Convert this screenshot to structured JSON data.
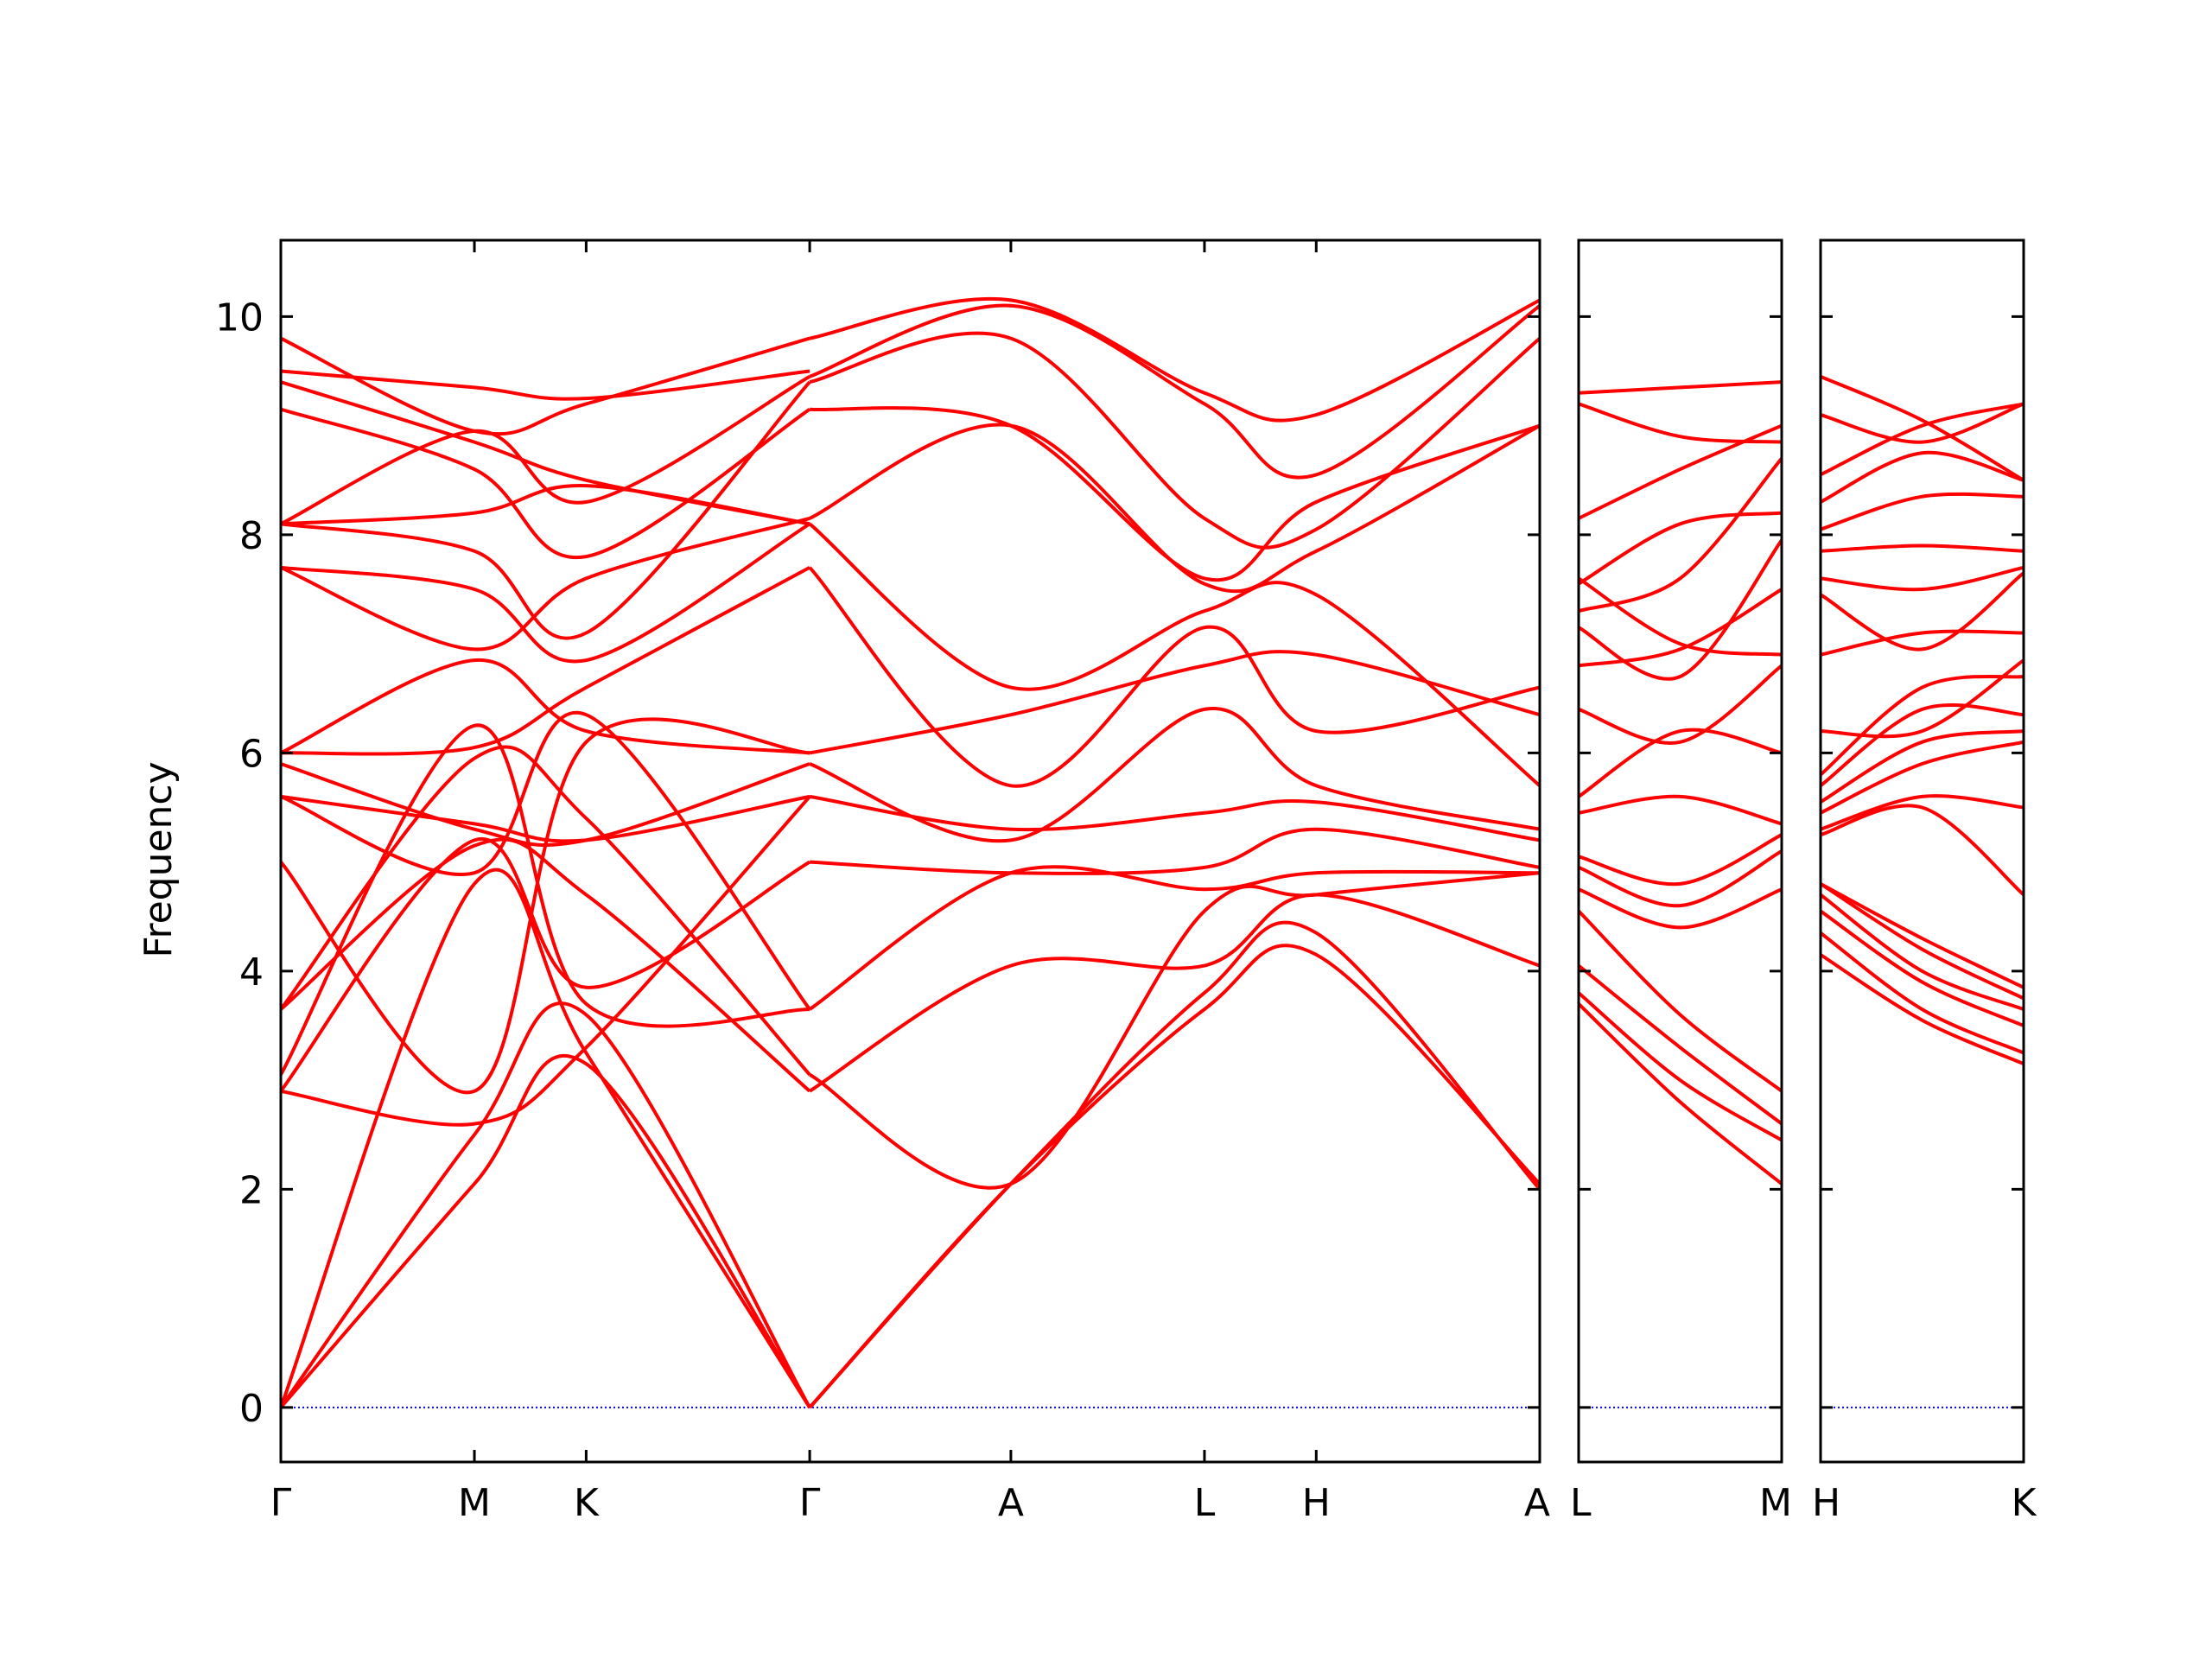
{
  "chart_data": {
    "type": "line",
    "title": "",
    "ylabel": "Frequency",
    "ylim": [
      -0.5,
      10.7
    ],
    "yticks": [
      0,
      2,
      4,
      6,
      8,
      10
    ],
    "colors": {
      "bands": "#ff0000",
      "zero_line": "#0000ff",
      "axes": "#000000"
    },
    "panels": [
      {
        "name": "Γ-M-K-Γ-A-L-H-A",
        "x_labels": [
          "Γ",
          "M",
          "K",
          "Γ",
          "A",
          "L",
          "H",
          "A"
        ],
        "x_positions": [
          0,
          0.866,
          1.366,
          2.366,
          3.266,
          4.132,
          4.632,
          5.632
        ],
        "series": [
          {
            "x": [
              0,
              0.866,
              1.366,
              2.366
            ],
            "y": [
              0,
              2.05,
              3.15,
              0
            ]
          },
          {
            "x": [
              0,
              0.866,
              1.366,
              2.366
            ],
            "y": [
              0,
              2.5,
              3.6,
              0
            ]
          },
          {
            "x": [
              0,
              0.866,
              1.366,
              2.366
            ],
            "y": [
              0,
              4.8,
              3.25,
              0
            ]
          },
          {
            "x": [
              0,
              0.866,
              1.366,
              2.366
            ],
            "y": [
              2.9,
              2.6,
              3.3,
              5.6
            ]
          },
          {
            "x": [
              0,
              0.866,
              1.366,
              2.366
            ],
            "y": [
              2.9,
              5.2,
              3.85,
              5.0
            ]
          },
          {
            "x": [
              0,
              0.866,
              1.366,
              2.366
            ],
            "y": [
              3.05,
              6.25,
              3.7,
              3.65
            ]
          },
          {
            "x": [
              0,
              0.866,
              1.366,
              2.366
            ],
            "y": [
              3.65,
              5.15,
              4.7,
              2.9
            ]
          },
          {
            "x": [
              0,
              0.866,
              1.366,
              2.366
            ],
            "y": [
              3.65,
              5.95,
              5.4,
              3.05
            ]
          },
          {
            "x": [
              0,
              0.866,
              1.366,
              2.366
            ],
            "y": [
              5.0,
              2.9,
              6.1,
              6.0
            ]
          },
          {
            "x": [
              0,
              0.866,
              1.366,
              2.366
            ],
            "y": [
              5.6,
              5.35,
              5.2,
              5.6
            ]
          },
          {
            "x": [
              0,
              0.866,
              1.366,
              2.366
            ],
            "y": [
              5.6,
              4.9,
              6.35,
              3.65
            ]
          },
          {
            "x": [
              0,
              0.866,
              1.366,
              2.366
            ],
            "y": [
              5.9,
              5.3,
              5.2,
              5.9
            ]
          },
          {
            "x": [
              0,
              0.866,
              1.366,
              2.366
            ],
            "y": [
              6.0,
              6.85,
              6.2,
              6.0
            ]
          },
          {
            "x": [
              0,
              0.866,
              1.366,
              2.366
            ],
            "y": [
              6.0,
              6.05,
              6.6,
              7.7
            ]
          },
          {
            "x": [
              0,
              0.866,
              1.366,
              2.366
            ],
            "y": [
              7.7,
              7.5,
              6.85,
              8.1
            ]
          },
          {
            "x": [
              0,
              0.866,
              1.366,
              2.366
            ],
            "y": [
              7.7,
              6.95,
              7.6,
              8.15
            ]
          },
          {
            "x": [
              0,
              0.866,
              1.366,
              2.366
            ],
            "y": [
              8.1,
              7.85,
              7.1,
              9.4
            ]
          },
          {
            "x": [
              0,
              0.866,
              1.366,
              2.366
            ],
            "y": [
              8.1,
              8.2,
              8.45,
              8.1
            ]
          },
          {
            "x": [
              0,
              0.866,
              1.366,
              2.366
            ],
            "y": [
              8.1,
              8.95,
              8.3,
              9.45
            ]
          },
          {
            "x": [
              0,
              0.866,
              1.366,
              2.366
            ],
            "y": [
              9.15,
              8.6,
              7.8,
              9.15
            ]
          },
          {
            "x": [
              0,
              0.866,
              1.366,
              2.366
            ],
            "y": [
              9.4,
              8.85,
              8.5,
              8.1
            ]
          },
          {
            "x": [
              0,
              0.866,
              1.366,
              2.366
            ],
            "y": [
              9.5,
              9.35,
              9.25,
              9.5
            ]
          },
          {
            "x": [
              0,
              0.866,
              1.366,
              2.366
            ],
            "y": [
              9.8,
              8.95,
              9.2,
              9.8
            ]
          },
          {
            "x": [
              2.366,
              3.266,
              4.132,
              4.632,
              5.632
            ],
            "y": [
              0,
              2.05,
              3.65,
              4.15,
              2.05
            ]
          },
          {
            "x": [
              2.366,
              3.266,
              4.132,
              4.632,
              5.632
            ],
            "y": [
              0,
              2.05,
              3.8,
              4.35,
              2.0
            ]
          },
          {
            "x": [
              2.366,
              3.266,
              4.132,
              4.632,
              5.632
            ],
            "y": [
              2.9,
              4.05,
              4.05,
              4.7,
              4.05
            ]
          },
          {
            "x": [
              2.366,
              3.266,
              4.132,
              4.632,
              5.632
            ],
            "y": [
              3.05,
              2.05,
              4.55,
              4.7,
              4.9
            ]
          },
          {
            "x": [
              2.366,
              3.266,
              4.132,
              4.632,
              5.632
            ],
            "y": [
              3.65,
              4.9,
              4.75,
              4.9,
              4.9
            ]
          },
          {
            "x": [
              2.366,
              3.266,
              4.132,
              4.632,
              5.632
            ],
            "y": [
              5.0,
              4.9,
              4.95,
              5.3,
              4.95
            ]
          },
          {
            "x": [
              2.366,
              3.266,
              4.132,
              4.632,
              5.632
            ],
            "y": [
              5.6,
              5.3,
              5.45,
              5.55,
              5.2
            ]
          },
          {
            "x": [
              2.366,
              3.266,
              4.132,
              4.632,
              5.632
            ],
            "y": [
              5.9,
              5.2,
              6.4,
              5.7,
              5.3
            ]
          },
          {
            "x": [
              2.366,
              3.266,
              4.132,
              4.632,
              5.632
            ],
            "y": [
              6.0,
              6.35,
              6.8,
              6.9,
              6.35
            ]
          },
          {
            "x": [
              2.366,
              3.266,
              4.132,
              4.632,
              5.632
            ],
            "y": [
              7.7,
              5.7,
              7.15,
              6.2,
              6.6
            ]
          },
          {
            "x": [
              2.366,
              3.266,
              4.132,
              4.632,
              5.632
            ],
            "y": [
              8.1,
              6.6,
              7.3,
              7.45,
              5.7
            ]
          },
          {
            "x": [
              2.366,
              3.266,
              4.132,
              4.632,
              5.632
            ],
            "y": [
              8.15,
              9.0,
              7.55,
              7.85,
              9.0
            ]
          },
          {
            "x": [
              2.366,
              3.266,
              4.132,
              4.632,
              5.632
            ],
            "y": [
              9.15,
              9.0,
              7.6,
              8.3,
              9.0
            ]
          },
          {
            "x": [
              2.366,
              3.266,
              4.132,
              4.632,
              5.632
            ],
            "y": [
              9.4,
              9.8,
              8.15,
              8.05,
              9.8
            ]
          },
          {
            "x": [
              2.366,
              3.266,
              4.132,
              4.632,
              5.632
            ],
            "y": [
              9.45,
              10.1,
              9.2,
              8.55,
              10.1
            ]
          },
          {
            "x": [
              2.366,
              3.266,
              4.132,
              4.632,
              5.632
            ],
            "y": [
              9.8,
              10.15,
              9.3,
              9.1,
              10.15
            ]
          }
        ]
      },
      {
        "name": "L-M",
        "x_labels": [
          "L",
          "M"
        ],
        "x_positions": [
          0,
          1
        ],
        "series": [
          {
            "x": [
              0,
              0.5,
              1
            ],
            "y": [
              3.7,
              2.8,
              2.05
            ]
          },
          {
            "x": [
              0,
              0.5,
              1
            ],
            "y": [
              3.8,
              3.0,
              2.45
            ]
          },
          {
            "x": [
              0,
              0.5,
              1
            ],
            "y": [
              4.05,
              3.3,
              2.6
            ]
          },
          {
            "x": [
              0,
              0.5,
              1
            ],
            "y": [
              4.55,
              3.6,
              2.9
            ]
          },
          {
            "x": [
              0,
              0.5,
              1
            ],
            "y": [
              4.75,
              4.4,
              4.75
            ]
          },
          {
            "x": [
              0,
              0.5,
              1
            ],
            "y": [
              4.95,
              4.6,
              5.1
            ]
          },
          {
            "x": [
              0,
              0.5,
              1
            ],
            "y": [
              5.05,
              4.8,
              5.25
            ]
          },
          {
            "x": [
              0,
              0.5,
              1
            ],
            "y": [
              5.45,
              5.6,
              5.35
            ]
          },
          {
            "x": [
              0,
              0.5,
              1
            ],
            "y": [
              5.6,
              6.2,
              6.0
            ]
          },
          {
            "x": [
              0,
              0.5,
              1
            ],
            "y": [
              6.4,
              6.1,
              6.8
            ]
          },
          {
            "x": [
              0,
              0.5,
              1
            ],
            "y": [
              6.8,
              6.95,
              7.5
            ]
          },
          {
            "x": [
              0,
              0.5,
              1
            ],
            "y": [
              7.15,
              6.7,
              7.95
            ]
          },
          {
            "x": [
              0,
              0.5,
              1
            ],
            "y": [
              7.3,
              7.6,
              8.7
            ]
          },
          {
            "x": [
              0,
              0.5,
              1
            ],
            "y": [
              7.55,
              8.1,
              8.2
            ]
          },
          {
            "x": [
              0,
              0.5,
              1
            ],
            "y": [
              7.6,
              7.0,
              6.9
            ]
          },
          {
            "x": [
              0,
              0.5,
              1
            ],
            "y": [
              8.15,
              8.6,
              9.0
            ]
          },
          {
            "x": [
              0,
              0.5,
              1
            ],
            "y": [
              9.2,
              8.9,
              8.85
            ]
          },
          {
            "x": [
              0,
              0.5,
              1
            ],
            "y": [
              9.3,
              9.35,
              9.4
            ]
          }
        ]
      },
      {
        "name": "H-K",
        "x_labels": [
          "H",
          "K"
        ],
        "x_positions": [
          0,
          1
        ],
        "series": [
          {
            "x": [
              0,
              0.5,
              1
            ],
            "y": [
              4.15,
              3.55,
              3.15
            ]
          },
          {
            "x": [
              0,
              0.5,
              1
            ],
            "y": [
              4.35,
              3.65,
              3.25
            ]
          },
          {
            "x": [
              0,
              0.5,
              1
            ],
            "y": [
              4.55,
              3.9,
              3.5
            ]
          },
          {
            "x": [
              0,
              0.5,
              1
            ],
            "y": [
              4.7,
              4.0,
              3.65
            ]
          },
          {
            "x": [
              0,
              0.5,
              1
            ],
            "y": [
              4.8,
              4.2,
              3.75
            ]
          },
          {
            "x": [
              0,
              0.5,
              1
            ],
            "y": [
              4.8,
              4.3,
              3.85
            ]
          },
          {
            "x": [
              0,
              0.5,
              1
            ],
            "y": [
              5.25,
              5.5,
              4.7
            ]
          },
          {
            "x": [
              0,
              0.5,
              1
            ],
            "y": [
              5.3,
              5.6,
              5.5
            ]
          },
          {
            "x": [
              0,
              0.5,
              1
            ],
            "y": [
              5.45,
              5.9,
              6.1
            ]
          },
          {
            "x": [
              0,
              0.5,
              1
            ],
            "y": [
              5.55,
              6.1,
              6.2
            ]
          },
          {
            "x": [
              0,
              0.5,
              1
            ],
            "y": [
              5.7,
              6.4,
              6.35
            ]
          },
          {
            "x": [
              0,
              0.5,
              1
            ],
            "y": [
              5.8,
              6.6,
              6.7
            ]
          },
          {
            "x": [
              0,
              0.5,
              1
            ],
            "y": [
              6.2,
              6.2,
              6.85
            ]
          },
          {
            "x": [
              0,
              0.5,
              1
            ],
            "y": [
              6.9,
              7.1,
              7.1
            ]
          },
          {
            "x": [
              0,
              0.5,
              1
            ],
            "y": [
              7.45,
              6.95,
              7.65
            ]
          },
          {
            "x": [
              0,
              0.5,
              1
            ],
            "y": [
              7.6,
              7.5,
              7.7
            ]
          },
          {
            "x": [
              0,
              0.5,
              1
            ],
            "y": [
              7.85,
              7.9,
              7.85
            ]
          },
          {
            "x": [
              0,
              0.5,
              1
            ],
            "y": [
              8.05,
              8.35,
              8.35
            ]
          },
          {
            "x": [
              0,
              0.5,
              1
            ],
            "y": [
              8.3,
              8.75,
              8.5
            ]
          },
          {
            "x": [
              0,
              0.5,
              1
            ],
            "y": [
              8.55,
              9.0,
              9.2
            ]
          },
          {
            "x": [
              0,
              0.5,
              1
            ],
            "y": [
              9.1,
              8.85,
              9.2
            ]
          },
          {
            "x": [
              0,
              0.5,
              1
            ],
            "y": [
              9.45,
              9.05,
              8.5
            ]
          }
        ]
      }
    ]
  }
}
